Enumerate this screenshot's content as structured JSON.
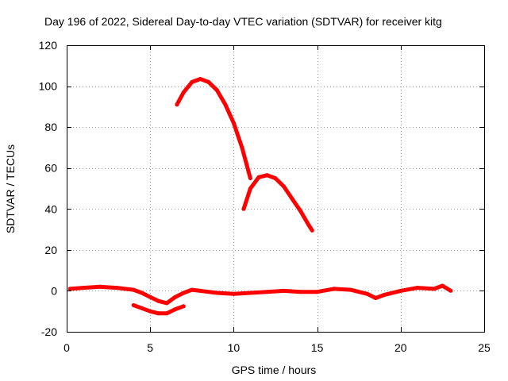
{
  "chart_data": {
    "type": "line",
    "title": "Day 196 of 2022, Sidereal Day-to-day VTEC variation (SDTVAR) for receiver kitg",
    "xlabel": "GPS time / hours",
    "ylabel": "SDTVAR / TECUs",
    "xlim": [
      0,
      25
    ],
    "ylim": [
      -20,
      120
    ],
    "xticks": [
      0,
      5,
      10,
      15,
      20,
      25
    ],
    "yticks": [
      -20,
      0,
      20,
      40,
      60,
      80,
      100,
      120
    ],
    "grid": true,
    "color": "#ff0000",
    "series": [
      {
        "name": "baseline",
        "x": [
          0.2,
          1.0,
          2.0,
          3.0,
          4.0,
          4.5,
          5.0,
          5.5,
          6.0,
          6.5,
          7.0,
          7.5,
          8.0,
          9.0,
          10.0,
          11.0,
          12.0,
          13.0,
          14.0,
          15.0,
          16.0,
          17.0,
          18.0,
          18.5,
          19.0,
          20.0,
          21.0,
          22.0,
          22.5,
          23.0
        ],
        "y": [
          1.0,
          1.5,
          2.0,
          1.5,
          0.5,
          -1.0,
          -3.0,
          -5.0,
          -6.0,
          -3.0,
          -1.0,
          0.5,
          0.0,
          -1.0,
          -1.5,
          -1.0,
          -0.5,
          0.0,
          -0.5,
          -0.5,
          1.0,
          0.5,
          -1.5,
          -3.5,
          -2.0,
          0.0,
          1.5,
          1.0,
          2.5,
          0.0
        ]
      },
      {
        "name": "lower-arc",
        "x": [
          4.0,
          4.5,
          5.0,
          5.5,
          6.0,
          6.5,
          7.0
        ],
        "y": [
          -7.0,
          -8.5,
          -10.0,
          -11.0,
          -11.0,
          -9.0,
          -7.5
        ]
      },
      {
        "name": "arc-1",
        "x": [
          6.6,
          7.0,
          7.5,
          8.0,
          8.5,
          9.0,
          9.5,
          10.0,
          10.5,
          11.0
        ],
        "y": [
          91,
          97,
          102,
          103.5,
          102,
          98,
          91,
          82,
          70,
          55
        ]
      },
      {
        "name": "arc-2",
        "x": [
          10.6,
          11.0,
          11.5,
          12.0,
          12.5,
          13.0,
          13.5,
          14.0,
          14.5,
          14.7
        ],
        "y": [
          40,
          50,
          55.5,
          56.5,
          55,
          51,
          45,
          39,
          32,
          29.5
        ]
      }
    ]
  }
}
